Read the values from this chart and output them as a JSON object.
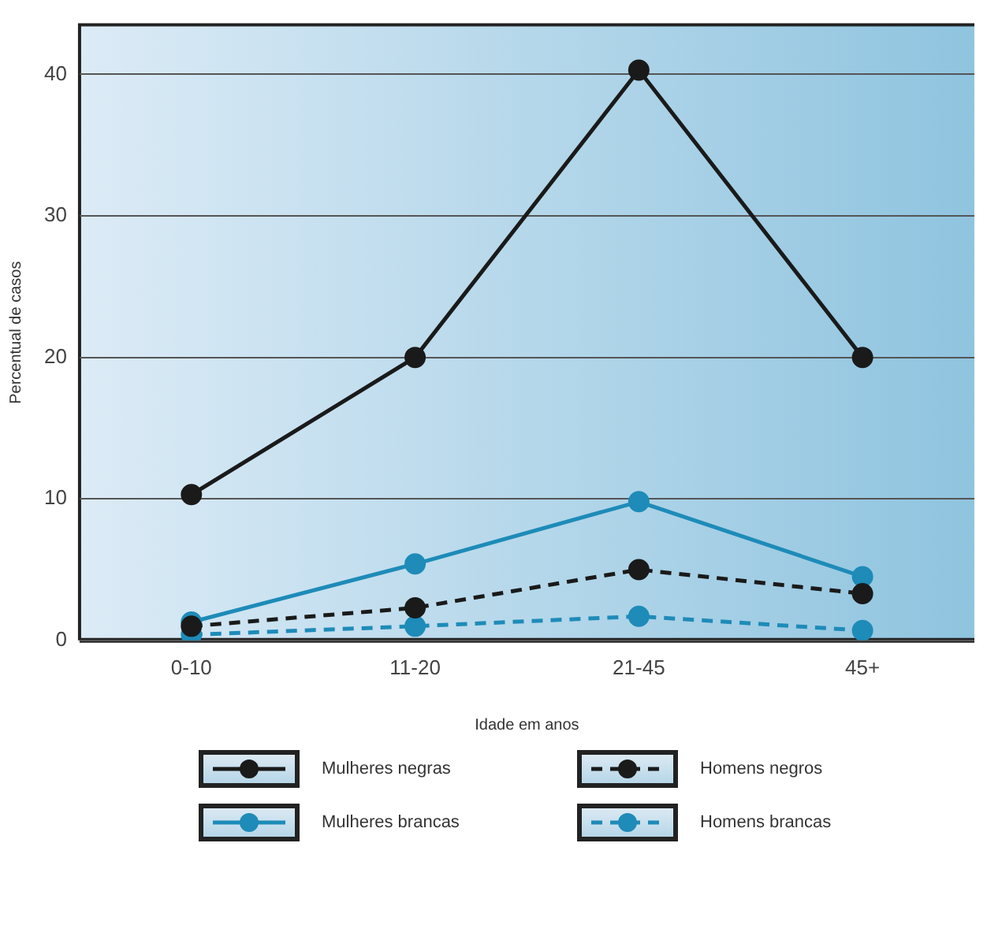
{
  "chart_data": {
    "type": "line",
    "xlabel": "Idade em anos",
    "ylabel": "Percentual de casos",
    "categories": [
      "0-10",
      "11-20",
      "21-45",
      "45+"
    ],
    "series": [
      {
        "name": "Mulheres negras",
        "color": "#1a1a1a",
        "line_style": "solid",
        "values": [
          10.3,
          20,
          40.3,
          20
        ]
      },
      {
        "name": "Homens negros",
        "color": "#1a1a1a",
        "line_style": "dashed",
        "values": [
          1.0,
          2.3,
          5.0,
          3.3
        ]
      },
      {
        "name": "Mulheres brancas",
        "color": "#1e8bb8",
        "line_style": "solid",
        "values": [
          1.3,
          5.4,
          9.8,
          4.5
        ]
      },
      {
        "name": "Homens brancas",
        "color": "#1e8bb8",
        "line_style": "dashed",
        "values": [
          0.4,
          1.0,
          1.7,
          0.7
        ]
      }
    ],
    "ylim": [
      0,
      43.5
    ],
    "yticks": [
      0,
      10,
      20,
      30,
      40
    ],
    "grid": "y",
    "marker": "circle",
    "legend": "bottom"
  }
}
